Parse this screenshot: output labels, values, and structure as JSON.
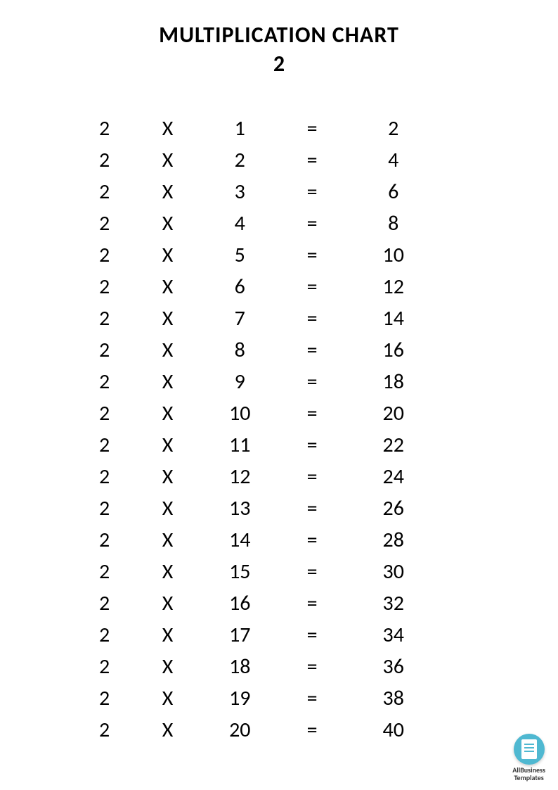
{
  "header": {
    "title": "MULTIPLICATION CHART",
    "number": "2",
    "title_fontsize": 32,
    "title_color": "#000000"
  },
  "table": {
    "type": "table",
    "multiplicand": 2,
    "operator_symbol": "X",
    "equals_symbol": "=",
    "rows": [
      {
        "multiplicand": "2",
        "operator": "X",
        "multiplier": "1",
        "equals": "=",
        "result": "2"
      },
      {
        "multiplicand": "2",
        "operator": "X",
        "multiplier": "2",
        "equals": "=",
        "result": "4"
      },
      {
        "multiplicand": "2",
        "operator": "X",
        "multiplier": "3",
        "equals": "=",
        "result": "6"
      },
      {
        "multiplicand": "2",
        "operator": "X",
        "multiplier": "4",
        "equals": "=",
        "result": "8"
      },
      {
        "multiplicand": "2",
        "operator": "X",
        "multiplier": "5",
        "equals": "=",
        "result": "10"
      },
      {
        "multiplicand": "2",
        "operator": "X",
        "multiplier": "6",
        "equals": "=",
        "result": "12"
      },
      {
        "multiplicand": "2",
        "operator": "X",
        "multiplier": "7",
        "equals": "=",
        "result": "14"
      },
      {
        "multiplicand": "2",
        "operator": "X",
        "multiplier": "8",
        "equals": "=",
        "result": "16"
      },
      {
        "multiplicand": "2",
        "operator": "X",
        "multiplier": "9",
        "equals": "=",
        "result": "18"
      },
      {
        "multiplicand": "2",
        "operator": "X",
        "multiplier": "10",
        "equals": "=",
        "result": "20"
      },
      {
        "multiplicand": "2",
        "operator": "X",
        "multiplier": "11",
        "equals": "=",
        "result": "22"
      },
      {
        "multiplicand": "2",
        "operator": "X",
        "multiplier": "12",
        "equals": "=",
        "result": "24"
      },
      {
        "multiplicand": "2",
        "operator": "X",
        "multiplier": "13",
        "equals": "=",
        "result": "26"
      },
      {
        "multiplicand": "2",
        "operator": "X",
        "multiplier": "14",
        "equals": "=",
        "result": "28"
      },
      {
        "multiplicand": "2",
        "operator": "X",
        "multiplier": "15",
        "equals": "=",
        "result": "30"
      },
      {
        "multiplicand": "2",
        "operator": "X",
        "multiplier": "16",
        "equals": "=",
        "result": "32"
      },
      {
        "multiplicand": "2",
        "operator": "X",
        "multiplier": "17",
        "equals": "=",
        "result": "34"
      },
      {
        "multiplicand": "2",
        "operator": "X",
        "multiplier": "18",
        "equals": "=",
        "result": "36"
      },
      {
        "multiplicand": "2",
        "operator": "X",
        "multiplier": "19",
        "equals": "=",
        "result": "38"
      },
      {
        "multiplicand": "2",
        "operator": "X",
        "multiplier": "20",
        "equals": "=",
        "result": "40"
      }
    ],
    "cell_fontsize": 30,
    "text_color": "#000000",
    "background_color": "#ffffff"
  },
  "watermark": {
    "line1": "AllBusiness",
    "line2": "Templates",
    "icon_bg_color": "#4fb8d1",
    "icon_fg_color": "#ffffff"
  }
}
